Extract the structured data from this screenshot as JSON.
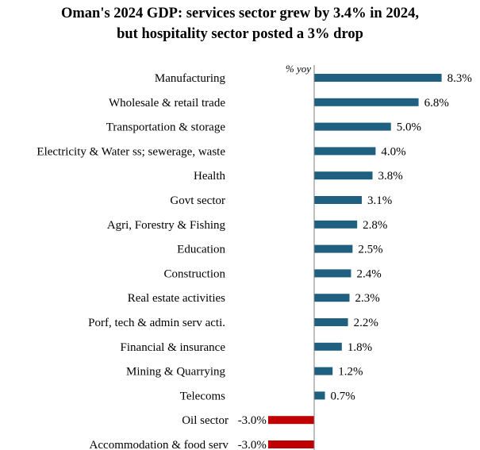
{
  "title_lines": [
    "Oman's 2024 GDP: services sector grew by 3.4% in 2024,",
    "but hospitality sector posted a 3% drop"
  ],
  "chart_data": {
    "type": "bar",
    "orientation": "horizontal",
    "title": "Oman's 2024 GDP: services sector grew by 3.4% in 2024, but hospitality sector posted a 3% drop",
    "unit_label": "% yoy",
    "categories": [
      "Manufacturing",
      "Wholesale & retail trade",
      "Transportation & storage",
      "Electricity & Water ss; sewerage, waste",
      "Health",
      "Govt sector",
      "Agri, Forestry & Fishing",
      "Education",
      "Construction",
      "Real estate activities",
      "Porf, tech & admin serv acti.",
      "Financial & insurance",
      "Mining & Quarrying",
      "Telecoms",
      "Oil sector",
      "Accommodation & food serv"
    ],
    "values": [
      8.3,
      6.8,
      5.0,
      4.0,
      3.8,
      3.1,
      2.8,
      2.5,
      2.4,
      2.3,
      2.2,
      1.8,
      1.2,
      0.7,
      -3.0,
      -3.0
    ],
    "value_labels": [
      "8.3%",
      "6.8%",
      "5.0%",
      "4.0%",
      "3.8%",
      "3.1%",
      "2.8%",
      "2.5%",
      "2.4%",
      "2.3%",
      "2.2%",
      "1.8%",
      "1.2%",
      "0.7%",
      "-3.0%",
      "-3.0%"
    ],
    "colors": {
      "positive": "#1f5f7f",
      "negative": "#c00000",
      "axis": "#7f7f7f"
    },
    "grid": false,
    "legend": "none"
  }
}
